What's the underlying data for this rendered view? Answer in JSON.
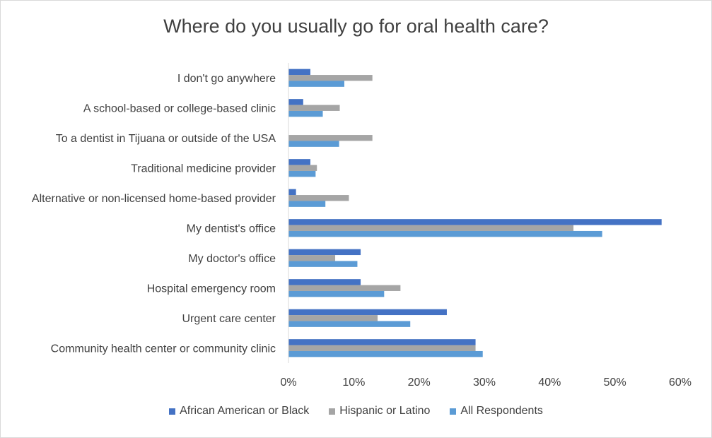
{
  "chart_data": {
    "type": "bar",
    "orientation": "horizontal",
    "title": "Where do you usually go for oral health care?",
    "categories": [
      "I don't go anywhere",
      "A school-based or college-based clinic",
      "To a dentist in Tijuana or outside of the USA",
      "Traditional medicine provider",
      "Alternative or non-licensed home-based provider",
      "My dentist's office",
      "My doctor's office",
      "Hospital emergency room",
      "Urgent care center",
      "Community health center or community clinic"
    ],
    "series": [
      {
        "name": "African American or Black",
        "color": "#4472c4",
        "values": [
          3.3,
          2.2,
          0,
          3.3,
          1.1,
          57.1,
          11.0,
          11.0,
          24.2,
          28.6
        ]
      },
      {
        "name": "Hispanic or Latino",
        "color": "#a5a5a5",
        "values": [
          12.8,
          7.8,
          12.8,
          4.3,
          9.2,
          43.6,
          7.1,
          17.1,
          13.6,
          28.6
        ]
      },
      {
        "name": "All Respondents",
        "color": "#5b9bd5",
        "values": [
          8.5,
          5.2,
          7.7,
          4.1,
          5.6,
          48.0,
          10.5,
          14.6,
          18.6,
          29.7
        ]
      }
    ],
    "xlim": [
      0,
      60
    ],
    "xticks": [
      "0%",
      "10%",
      "20%",
      "30%",
      "40%",
      "50%",
      "60%"
    ],
    "grid": false,
    "legend_position": "bottom"
  }
}
